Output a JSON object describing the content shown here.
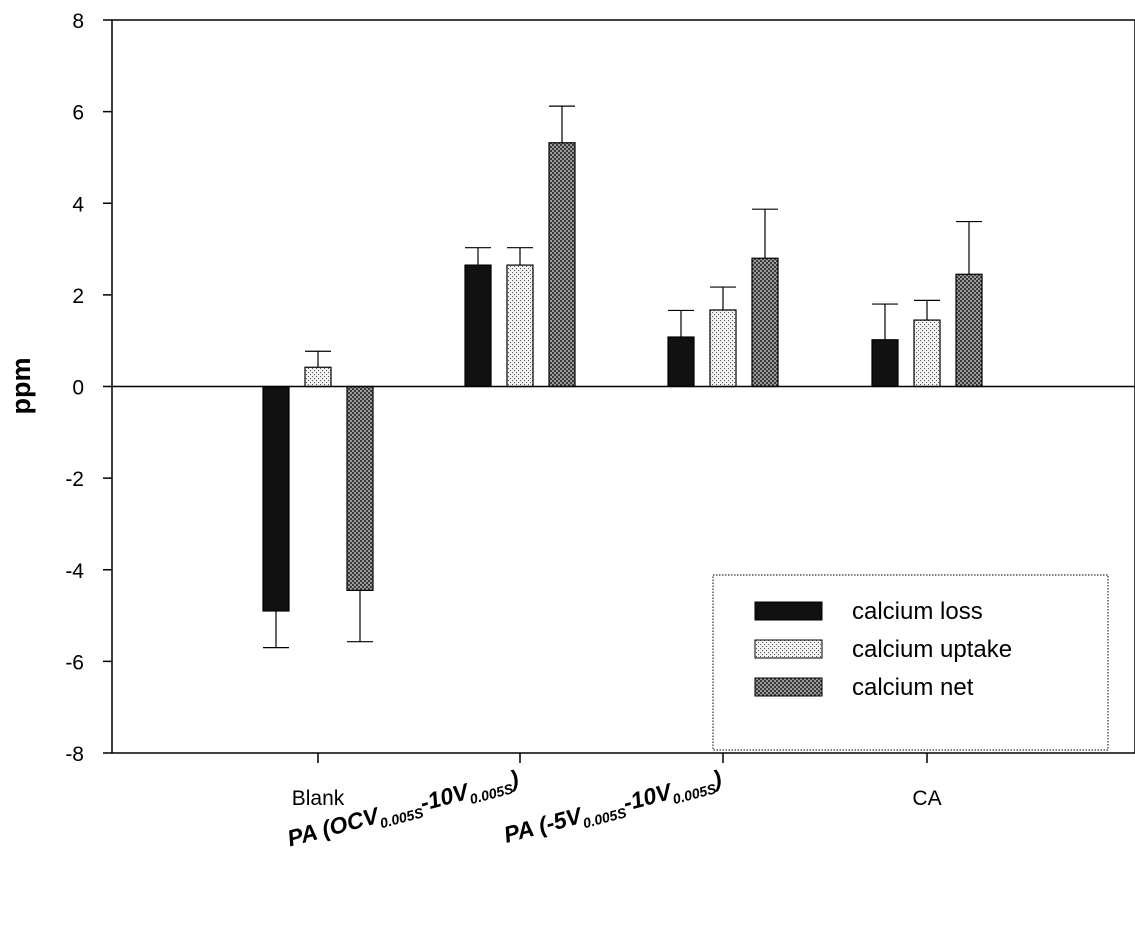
{
  "chart_data": {
    "type": "bar",
    "ylabel": "ppm",
    "ylim": [
      -8,
      8
    ],
    "yticks": [
      -8,
      -6,
      -4,
      -2,
      0,
      2,
      4,
      6,
      8
    ],
    "zero_line": true,
    "legend_position": "bottom-right",
    "categories": [
      {
        "main": "Blank",
        "rotated": false
      },
      {
        "main": "PA (OCV",
        "sub1": "0.005S",
        "mid": "-10V",
        "sub2": "0.005S",
        "end": ")",
        "rotated": true
      },
      {
        "main": "PA (-5V",
        "sub1": "0.005S",
        "mid": "-10V",
        "sub2": "0.005S",
        "end": ")",
        "rotated": true
      },
      {
        "main": "CA",
        "rotated": false
      }
    ],
    "series": [
      {
        "name": "calcium loss",
        "color": "#111111",
        "pattern": "solid",
        "values": [
          -4.9,
          2.65,
          1.08,
          1.02
        ],
        "errors": [
          0.8,
          0.38,
          0.58,
          0.78
        ]
      },
      {
        "name": "calcium uptake",
        "color": "#dddddd",
        "pattern": "light-dots",
        "values": [
          0.42,
          2.65,
          1.67,
          1.45
        ],
        "errors": [
          0.35,
          0.38,
          0.5,
          0.43
        ]
      },
      {
        "name": "calcium net",
        "color": "#777777",
        "pattern": "dark-crosshatch",
        "values": [
          -4.45,
          5.32,
          2.8,
          2.45
        ],
        "errors": [
          1.12,
          0.8,
          1.07,
          1.15
        ]
      }
    ]
  }
}
